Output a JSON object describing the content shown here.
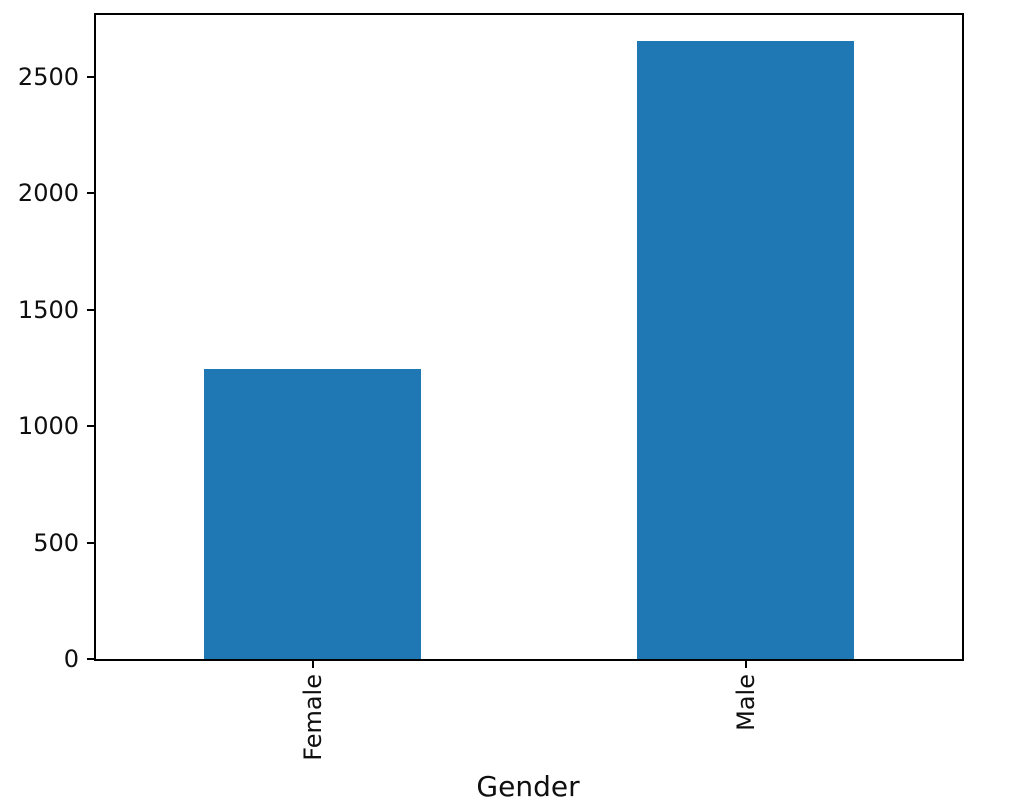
{
  "chart_data": {
    "type": "bar",
    "title": "",
    "xlabel": "Gender",
    "ylabel": "",
    "categories": [
      "Female",
      "Male"
    ],
    "values": [
      1245,
      2655
    ],
    "ylim": [
      0,
      2765
    ],
    "yticks": [
      0,
      500,
      1000,
      1500,
      2000,
      2500
    ],
    "ytick_labels": [
      "0",
      "500",
      "1000",
      "1500",
      "2000",
      "2500"
    ],
    "xtick_rotation_degrees": 90,
    "bar_width_fraction": 0.5,
    "bar_color": "#1f77b4",
    "grid": false,
    "legend": null,
    "background_color": "#ffffff",
    "spine_color": "#000000",
    "text_color": "#0f0f0f"
  }
}
